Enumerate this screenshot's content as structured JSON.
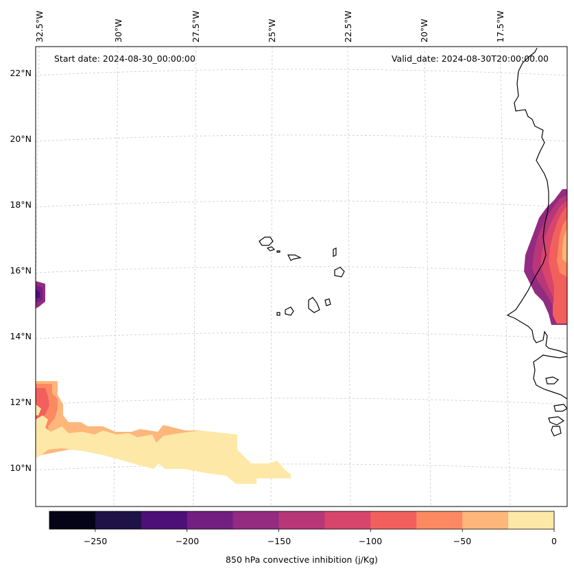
{
  "header": {
    "start_label": "Start date: 2024-08-30_00:00:00",
    "valid_label": "Valid_date: 2024-08-30T20:00:00.00"
  },
  "axes": {
    "lon_labels": [
      "32.5°W",
      "30°W",
      "27.5°W",
      "25°W",
      "22.5°W",
      "20°W",
      "17.5°W"
    ],
    "lat_labels": [
      "22°N",
      "20°N",
      "18°N",
      "16°N",
      "14°N",
      "12°N",
      "10°N"
    ]
  },
  "colorbar": {
    "title": "850 hPa convective inhibition (j/Kg)",
    "tick_labels": [
      "−250",
      "−200",
      "−150",
      "−100",
      "−50",
      "0"
    ],
    "bins": [
      -275,
      -250,
      -225,
      -200,
      -175,
      -150,
      -125,
      -100,
      -75,
      -50,
      -25,
      0
    ],
    "colors": [
      "#050416",
      "#1e1246",
      "#4d0f78",
      "#721f81",
      "#932b80",
      "#b73779",
      "#d8456c",
      "#f1605d",
      "#fc8961",
      "#feb67a",
      "#fde8a8"
    ]
  },
  "field_colors": {
    "cin_0_25": "#fde8a8",
    "cin_25_50": "#feb67a",
    "cin_50_75": "#fc8961",
    "cin_75_100": "#f1605d",
    "cin_100_125": "#d8456c",
    "cin_125_150": "#b73779",
    "cin_150_175": "#932b80",
    "cin_175_200": "#721f81",
    "cin_200_225": "#4d0f78"
  }
}
